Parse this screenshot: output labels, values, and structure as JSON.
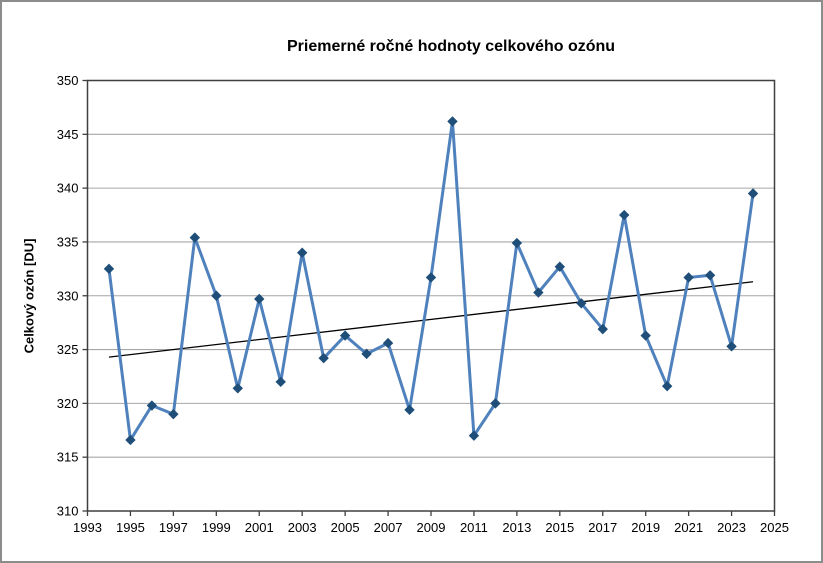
{
  "window": {
    "background_color": "#ffffff",
    "border_color": "#8c8c8c"
  },
  "chart_data": {
    "type": "line",
    "title": "Priemerné ročné hodnoty celkového ozónu",
    "ylabel": "Celkový ozón [DU]",
    "xlabel": "",
    "x": [
      1994,
      1995,
      1996,
      1997,
      1998,
      1999,
      2000,
      2001,
      2002,
      2003,
      2004,
      2005,
      2006,
      2007,
      2008,
      2009,
      2010,
      2011,
      2012,
      2013,
      2014,
      2015,
      2016,
      2017,
      2018,
      2019,
      2020,
      2021,
      2022,
      2023,
      2024
    ],
    "values": [
      332.5,
      316.6,
      319.8,
      319.0,
      335.4,
      330.0,
      321.4,
      329.7,
      322.0,
      334.0,
      324.2,
      326.3,
      324.6,
      325.6,
      319.4,
      331.7,
      346.2,
      317.0,
      320.0,
      334.9,
      330.3,
      332.7,
      329.3,
      326.9,
      337.5,
      326.3,
      321.6,
      331.7,
      331.9,
      325.3,
      339.5
    ],
    "ylim": [
      310,
      350
    ],
    "xlim": [
      1993,
      2025
    ],
    "ytick_step": 5,
    "xtick_step": 2,
    "grid": true,
    "legend": "none",
    "marker_shape": "diamond",
    "trendline": {
      "x1": 1994,
      "value1": 324.3,
      "x2": 2024,
      "value2": 331.3
    },
    "colors": {
      "line": "#4f81bd",
      "marker": "#1f4e79",
      "grid": "#a6a6a6",
      "axis": "#3f3f3f",
      "trend": "#000000",
      "text": "#000000"
    }
  }
}
